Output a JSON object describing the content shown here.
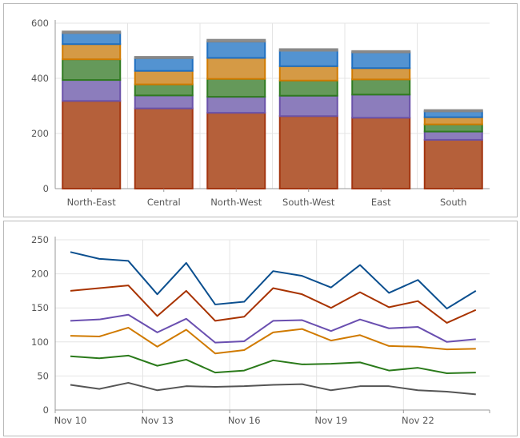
{
  "chart_data": [
    {
      "type": "bar",
      "stacked": true,
      "categories": [
        "North-East",
        "Central",
        "North-West",
        "South-West",
        "East",
        "South"
      ],
      "ylim": [
        0,
        600
      ],
      "yticks": [
        0,
        200,
        400,
        600
      ],
      "grid": true,
      "series": [
        {
          "values": [
            318,
            291,
            275,
            263,
            257,
            177
          ],
          "fill": "#b5603a",
          "stroke": "#a33510"
        },
        {
          "values": [
            76,
            47,
            58,
            74,
            84,
            30
          ],
          "fill": "#8c7dbc",
          "stroke": "#6a52a8"
        },
        {
          "values": [
            75,
            40,
            65,
            55,
            55,
            26
          ],
          "fill": "#65995a",
          "stroke": "#2f7a20"
        },
        {
          "values": [
            55,
            49,
            76,
            52,
            41,
            26
          ],
          "fill": "#d59a45",
          "stroke": "#d07a00"
        },
        {
          "values": [
            40,
            46,
            59,
            56,
            57,
            21
          ],
          "fill": "#5393d1",
          "stroke": "#1f6fc0"
        },
        {
          "values": [
            6,
            5,
            7,
            6,
            5,
            5
          ],
          "fill": "#999999",
          "stroke": "#888888"
        }
      ]
    },
    {
      "type": "line",
      "x": [
        "Nov 10",
        "Nov 11",
        "Nov 12",
        "Nov 13",
        "Nov 14",
        "Nov 15",
        "Nov 16",
        "Nov 17",
        "Nov 18",
        "Nov 19",
        "Nov 20",
        "Nov 21",
        "Nov 22",
        "Nov 23",
        "Nov 24"
      ],
      "xticks": [
        "Nov 10",
        "Nov 13",
        "Nov 16",
        "Nov 19",
        "Nov 22"
      ],
      "ylim": [
        0,
        250
      ],
      "yticks": [
        0,
        50,
        100,
        150,
        200,
        250
      ],
      "grid": true,
      "series": [
        {
          "color": "#0b4f8f",
          "values": [
            232,
            222,
            219,
            170,
            216,
            155,
            159,
            204,
            197,
            180,
            213,
            172,
            191,
            149,
            175
          ]
        },
        {
          "color": "#a83300",
          "values": [
            175,
            179,
            183,
            138,
            175,
            131,
            137,
            179,
            170,
            150,
            173,
            151,
            160,
            128,
            147
          ]
        },
        {
          "color": "#6a4fb0",
          "values": [
            131,
            133,
            140,
            114,
            134,
            99,
            101,
            131,
            132,
            116,
            133,
            120,
            122,
            100,
            104
          ]
        },
        {
          "color": "#d07a00",
          "values": [
            109,
            108,
            121,
            93,
            118,
            83,
            88,
            114,
            119,
            102,
            110,
            94,
            93,
            89,
            90
          ]
        },
        {
          "color": "#2a7a1a",
          "values": [
            79,
            76,
            80,
            65,
            74,
            55,
            58,
            73,
            67,
            68,
            70,
            58,
            62,
            54,
            55
          ]
        },
        {
          "color": "#555555",
          "values": [
            37,
            31,
            40,
            29,
            35,
            34,
            35,
            37,
            38,
            29,
            35,
            35,
            29,
            27,
            23
          ]
        }
      ]
    }
  ]
}
